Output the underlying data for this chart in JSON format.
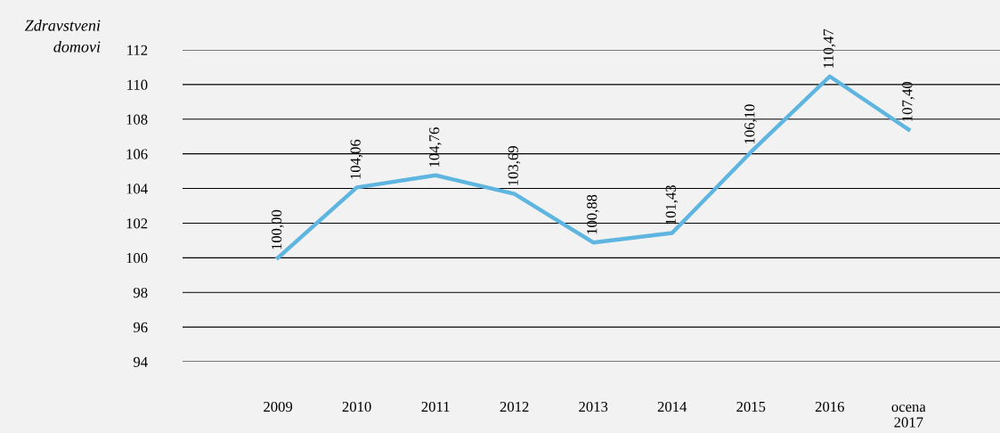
{
  "chart_data": {
    "type": "line",
    "ylabel": "Zdravstveni\ndomovi",
    "categories": [
      "2009",
      "2010",
      "2011",
      "2012",
      "2013",
      "2014",
      "2015",
      "2016",
      "ocena\n2017"
    ],
    "values": [
      100.0,
      104.06,
      104.76,
      103.69,
      100.88,
      101.43,
      106.1,
      110.47,
      107.4
    ],
    "value_labels": [
      "100,00",
      "104,06",
      "104,76",
      "103,69",
      "100,88",
      "101,43",
      "106,10",
      "110,47",
      "107,40"
    ],
    "color": "#5db5e0",
    "ylim": [
      94,
      112
    ],
    "yticks": [
      94,
      96,
      98,
      100,
      102,
      104,
      106,
      108,
      110,
      112
    ],
    "grid": "y",
    "legend": false,
    "marker": "none",
    "line_style": "solid"
  }
}
